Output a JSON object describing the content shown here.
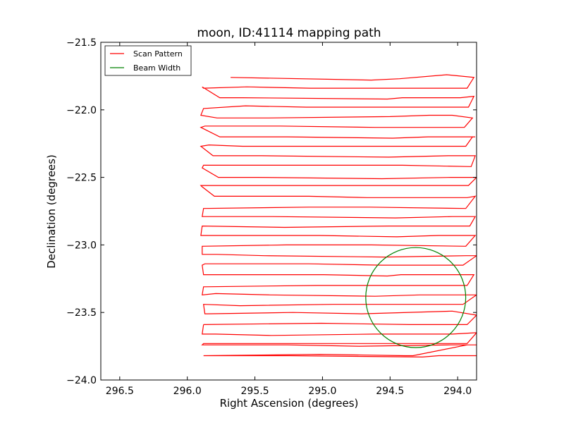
{
  "chart_data": {
    "type": "line",
    "title": "moon, ID:41114 mapping path",
    "xlabel": "Right Ascension (degrees)",
    "ylabel": "Declination (degrees)",
    "xlim": [
      296.64,
      293.86
    ],
    "ylim": [
      -24.0,
      -21.5
    ],
    "x_inverted": true,
    "xticks": [
      296.5,
      296.0,
      295.5,
      295.0,
      294.5,
      294.0
    ],
    "xtick_labels": [
      "296.5",
      "296.0",
      "295.5",
      "295.0",
      "294.5",
      "294.0"
    ],
    "yticks": [
      -21.5,
      -22.0,
      -22.5,
      -23.0,
      -23.5,
      -24.0
    ],
    "ytick_labels": [
      "−21.5",
      "−22.0",
      "−22.5",
      "−23.0",
      "−23.5",
      "−24.0"
    ],
    "grid": false,
    "legend_position": "upper-left",
    "series": [
      {
        "name": "Scan Pattern",
        "color": "#ff0000",
        "x": [
          295.68,
          294.64,
          294.43,
          294.08,
          293.88,
          293.93,
          295.09,
          295.56,
          295.88,
          295.89,
          295.76,
          295.59,
          294.52,
          294.41,
          293.98,
          293.88,
          293.92,
          294.48,
          295.12,
          295.57,
          295.88,
          295.9,
          295.78,
          295.4,
          294.5,
          294.21,
          294.04,
          293.89,
          293.95,
          294.61,
          295.31,
          295.87,
          295.9,
          295.76,
          295.26,
          294.48,
          294.22,
          293.87,
          293.89,
          293.94,
          295.07,
          295.59,
          295.84,
          295.9,
          295.81,
          295.45,
          294.51,
          294.07,
          293.87,
          293.9,
          294.41,
          295.09,
          295.88,
          295.89,
          295.77,
          295.48,
          294.56,
          294.05,
          293.86,
          293.92,
          295.11,
          295.9,
          295.89,
          295.8,
          295.1,
          294.67,
          293.93,
          293.87,
          293.94,
          294.65,
          295.1,
          295.88,
          295.89,
          295.84,
          295.37,
          294.46,
          294.04,
          293.87,
          293.91,
          294.51,
          295.28,
          295.89,
          295.9,
          295.71,
          295.02,
          294.45,
          294.14,
          293.87,
          293.94,
          294.64,
          295.27,
          295.89,
          295.89,
          295.78,
          295.43,
          294.54,
          293.94,
          293.86,
          293.96,
          294.56,
          295.1,
          295.87,
          295.89,
          295.88,
          294.99,
          294.52,
          294.42,
          294.09,
          293.88,
          293.93,
          294.59,
          295.04,
          295.88,
          295.89,
          295.79,
          295.39,
          294.61,
          294.28,
          294.03,
          293.86,
          293.96,
          294.92,
          295.61,
          295.88,
          295.87,
          295.85,
          295.22,
          294.71,
          294.04,
          293.86,
          293.93,
          294.35,
          295.01,
          295.88
        ],
        "y": [
          -21.76,
          -21.78,
          -21.77,
          -21.74,
          -21.76,
          -21.84,
          -21.84,
          -21.83,
          -21.84,
          -21.83,
          -21.91,
          -21.91,
          -21.92,
          -21.91,
          -21.91,
          -21.9,
          -21.98,
          -21.98,
          -21.98,
          -21.97,
          -21.99,
          -22.04,
          -22.06,
          -22.06,
          -22.05,
          -22.04,
          -22.04,
          -22.06,
          -22.13,
          -22.13,
          -22.12,
          -22.12,
          -22.13,
          -22.2,
          -22.2,
          -22.21,
          -22.2,
          -22.2,
          -22.2,
          -22.27,
          -22.27,
          -22.27,
          -22.26,
          -22.27,
          -22.34,
          -22.34,
          -22.35,
          -22.34,
          -22.34,
          -22.42,
          -22.41,
          -22.41,
          -22.41,
          -22.43,
          -22.5,
          -22.5,
          -22.51,
          -22.5,
          -22.5,
          -22.56,
          -22.56,
          -22.56,
          -22.57,
          -22.64,
          -22.64,
          -22.65,
          -22.65,
          -22.64,
          -22.73,
          -22.72,
          -22.72,
          -22.73,
          -22.79,
          -22.79,
          -22.79,
          -22.8,
          -22.79,
          -22.79,
          -22.86,
          -22.86,
          -22.87,
          -22.86,
          -22.93,
          -22.93,
          -22.93,
          -22.94,
          -22.93,
          -22.93,
          -23.01,
          -23.0,
          -23.0,
          -23.01,
          -23.07,
          -23.07,
          -23.08,
          -23.09,
          -23.08,
          -23.08,
          -23.15,
          -23.15,
          -23.14,
          -23.14,
          -23.15,
          -23.22,
          -23.22,
          -23.23,
          -23.22,
          -23.22,
          -23.22,
          -23.3,
          -23.3,
          -23.3,
          -23.31,
          -23.37,
          -23.36,
          -23.37,
          -23.38,
          -23.37,
          -23.37,
          -23.37,
          -23.44,
          -23.44,
          -23.45,
          -23.44,
          -23.51,
          -23.51,
          -23.5,
          -23.51,
          -23.49,
          -23.52,
          -23.59,
          -23.59,
          -23.58,
          -23.59
        ]
      },
      {
        "name": "Beam Width",
        "color": "#008000",
        "shape": "circle",
        "center": [
          294.31,
          -23.39
        ],
        "radius": 0.37
      }
    ],
    "extra_scan_rows": [
      {
        "x": [
          295.88,
          295.89,
          295.79,
          295.38,
          294.62,
          294.27,
          294.04,
          293.86,
          293.93,
          294.64,
          295.02,
          295.88,
          295.89,
          295.85,
          295.26,
          294.73,
          294.05,
          293.86,
          293.93,
          294.33,
          294.39,
          295.02,
          295.88,
          295.87,
          295.86,
          295.24,
          294.26,
          294.14,
          293.86
        ],
        "y": [
          -23.59,
          -23.66,
          -23.66,
          -23.67,
          -23.66,
          -23.66,
          -23.66,
          -23.65,
          -23.73,
          -23.73,
          -23.73,
          -23.73,
          -23.74,
          -23.74,
          -23.74,
          -23.75,
          -23.74,
          -23.74,
          -23.74,
          -23.82,
          -23.82,
          -23.81,
          -23.82,
          -23.82,
          -23.82,
          -23.82,
          -23.83,
          -23.82,
          -23.82
        ]
      }
    ]
  }
}
